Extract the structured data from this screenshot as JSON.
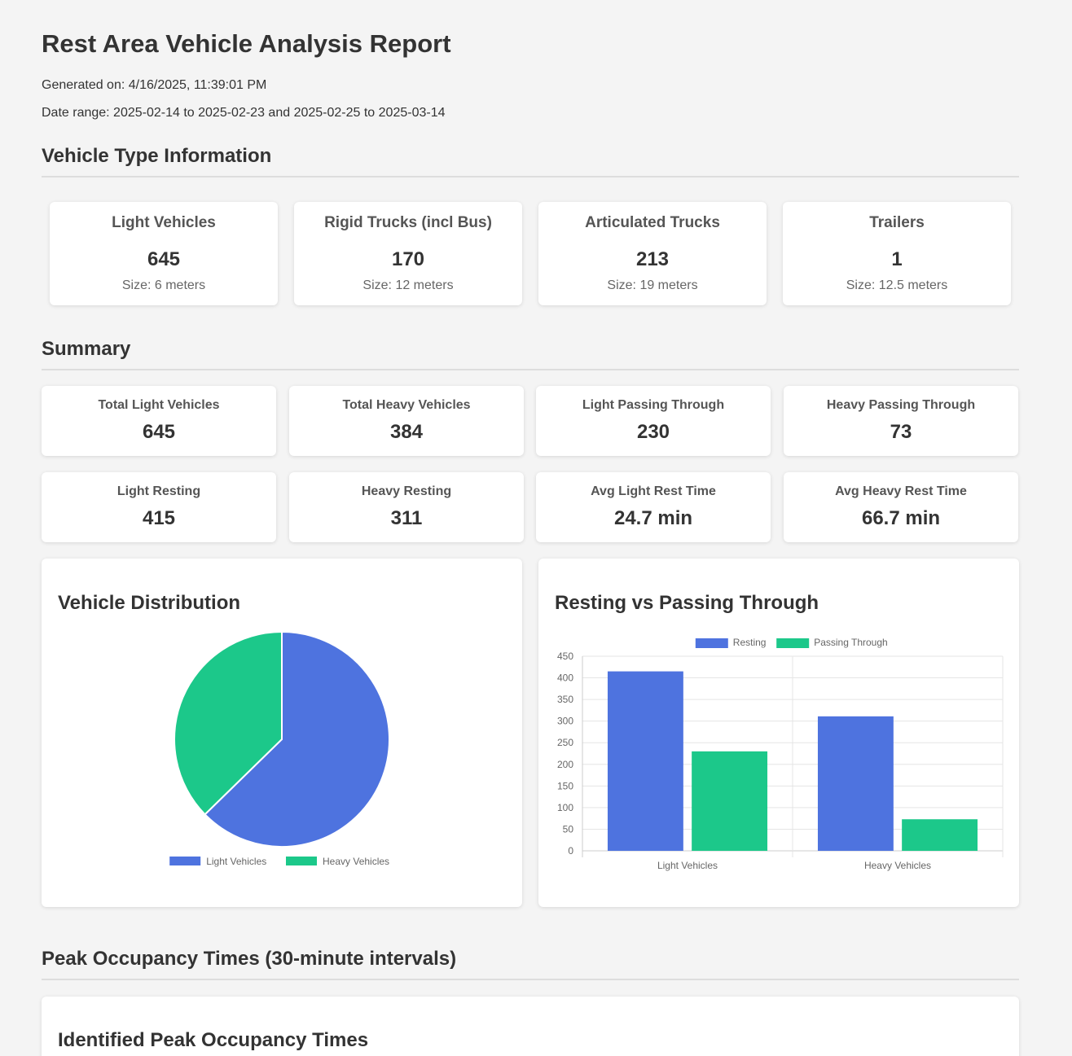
{
  "report": {
    "title": "Rest Area Vehicle Analysis Report",
    "generated": "Generated on: 4/16/2025, 11:39:01 PM",
    "date_range": "Date range: 2025-02-14 to 2025-02-23 and 2025-02-25 to 2025-03-14"
  },
  "vehicle_types": {
    "heading": "Vehicle Type Information",
    "items": [
      {
        "name": "Light Vehicles",
        "count": "645",
        "size": "Size: 6 meters"
      },
      {
        "name": "Rigid Trucks (incl Bus)",
        "count": "170",
        "size": "Size: 12 meters"
      },
      {
        "name": "Articulated Trucks",
        "count": "213",
        "size": "Size: 19 meters"
      },
      {
        "name": "Trailers",
        "count": "1",
        "size": "Size: 12.5 meters"
      }
    ]
  },
  "summary": {
    "heading": "Summary",
    "stats": [
      {
        "label": "Total Light Vehicles",
        "value": "645"
      },
      {
        "label": "Total Heavy Vehicles",
        "value": "384"
      },
      {
        "label": "Light Passing Through",
        "value": "230"
      },
      {
        "label": "Heavy Passing Through",
        "value": "73"
      },
      {
        "label": "Light Resting",
        "value": "415"
      },
      {
        "label": "Heavy Resting",
        "value": "311"
      },
      {
        "label": "Avg Light Rest Time",
        "value": "24.7 min"
      },
      {
        "label": "Avg Heavy Rest Time",
        "value": "66.7 min"
      }
    ]
  },
  "colors": {
    "blue": "#4e73df",
    "green": "#1cc88a"
  },
  "chart_data": [
    {
      "type": "pie",
      "title": "Vehicle Distribution",
      "categories": [
        "Light Vehicles",
        "Heavy Vehicles"
      ],
      "values": [
        645,
        384
      ],
      "colors": [
        "#4e73df",
        "#1cc88a"
      ],
      "legend": "bottom"
    },
    {
      "type": "bar",
      "title": "Resting vs Passing Through",
      "categories": [
        "Light Vehicles",
        "Heavy Vehicles"
      ],
      "series": [
        {
          "name": "Resting",
          "values": [
            415,
            311
          ],
          "color": "#4e73df"
        },
        {
          "name": "Passing Through",
          "values": [
            230,
            73
          ],
          "color": "#1cc88a"
        }
      ],
      "ylim": [
        0,
        450
      ],
      "yticks": [
        0,
        50,
        100,
        150,
        200,
        250,
        300,
        350,
        400,
        450
      ],
      "legend": "top",
      "grid": true
    }
  ],
  "peak": {
    "heading": "Peak Occupancy Times (30-minute intervals)",
    "card_title": "Identified Peak Occupancy Times"
  }
}
